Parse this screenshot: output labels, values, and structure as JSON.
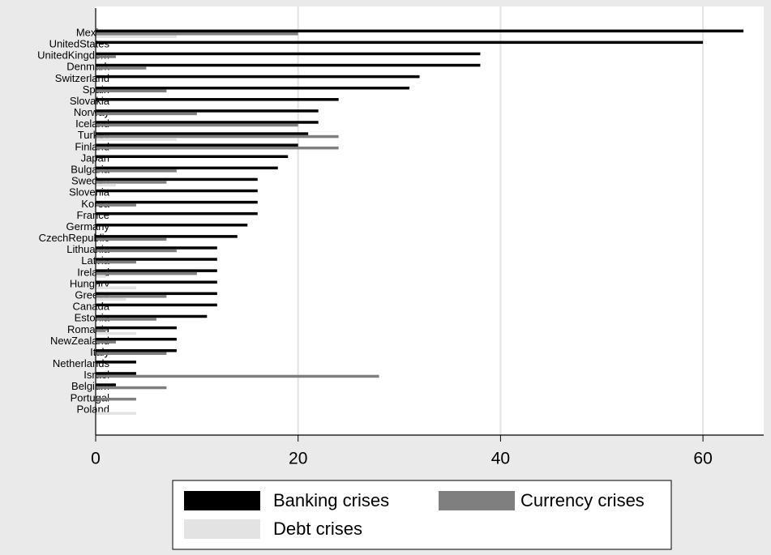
{
  "chart_data": {
    "type": "hbar",
    "categories": [
      "Mexico",
      "UnitedStates",
      "UnitedKingdom",
      "Denmark",
      "Switzerland",
      "Spain",
      "Slovakia",
      "Norway",
      "Iceland",
      "Turkey",
      "Finland",
      "Japan",
      "Bulgaria",
      "Sweden",
      "Slovenia",
      "Korea",
      "France",
      "Germany",
      "CzechRepublic",
      "Lithuania",
      "Latvia",
      "Ireland",
      "Hungary",
      "Greece",
      "Canada",
      "Estonia",
      "Romania",
      "NewZealand",
      "Italy",
      "Netherlands",
      "Israel",
      "Belgium",
      "Portugal",
      "Poland"
    ],
    "series": [
      {
        "name": "Banking crises",
        "color": "#000000",
        "values": [
          64,
          60,
          38,
          38,
          32,
          31,
          24,
          22,
          22,
          21,
          20,
          19,
          18,
          16,
          16,
          16,
          16,
          15,
          14,
          12,
          12,
          12,
          12,
          12,
          12,
          11,
          8,
          8,
          8,
          4,
          4,
          2,
          0,
          0
        ]
      },
      {
        "name": "Currency crises",
        "color": "#7f7f7f",
        "values": [
          20,
          0,
          2,
          5,
          0,
          7,
          0,
          10,
          20,
          24,
          24,
          0,
          8,
          7,
          0,
          4,
          0,
          0,
          7,
          8,
          4,
          10,
          0,
          7,
          0,
          6,
          1,
          2,
          7,
          0,
          28,
          7,
          4,
          0
        ]
      },
      {
        "name": "Debt crises",
        "color": "#e3e3e3",
        "values": [
          8,
          0,
          0,
          0,
          0,
          0,
          0,
          0,
          0,
          8,
          0,
          0,
          0,
          2,
          0,
          0,
          0,
          0,
          0,
          0,
          0,
          1,
          4,
          3,
          0,
          0,
          4,
          0,
          0,
          0,
          0,
          0,
          0,
          4
        ]
      }
    ],
    "xlim": [
      0,
      66
    ],
    "xticks": [
      0,
      20,
      40,
      60
    ],
    "grid": true
  }
}
